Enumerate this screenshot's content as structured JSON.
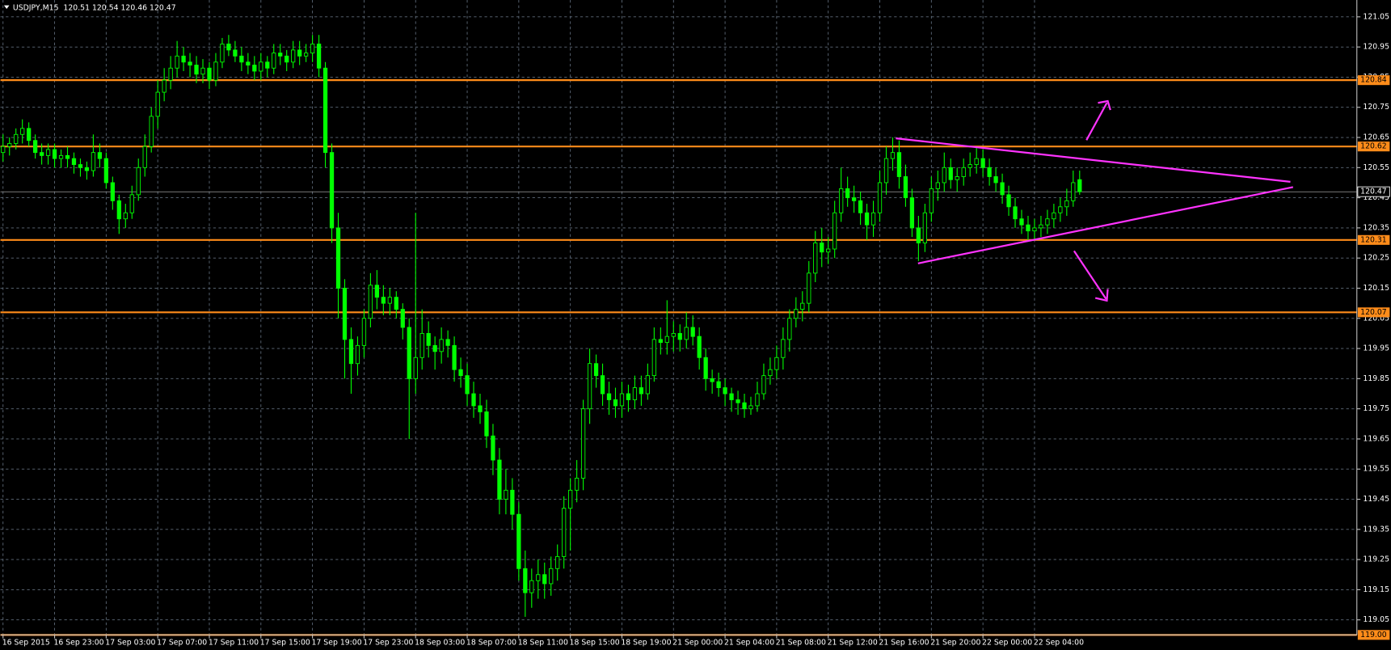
{
  "chart_data": {
    "type": "candlestick",
    "title": "USDJPY,M15  120.51 120.54 120.46 120.47",
    "color": "#00ff00",
    "open": [
      120.6,
      120.62,
      120.63,
      120.66,
      120.68,
      120.64,
      120.6,
      120.59,
      120.61,
      120.58,
      120.59,
      120.58,
      120.56,
      120.55,
      120.54,
      120.6,
      120.58,
      120.5,
      120.44,
      120.38,
      120.4,
      120.46,
      120.55,
      120.62,
      120.72,
      120.8,
      120.84,
      120.88,
      120.92,
      120.9,
      120.89,
      120.86,
      120.88,
      120.84,
      120.9,
      120.96,
      120.94,
      120.92,
      120.9,
      120.89,
      120.87,
      120.9,
      120.88,
      120.93,
      120.92,
      120.9,
      120.94,
      120.92,
      120.93,
      120.96,
      120.88,
      120.6,
      120.35,
      120.15,
      119.98,
      119.9,
      119.96,
      120.05,
      120.16,
      120.12,
      120.1,
      120.12,
      120.08,
      120.02,
      119.85,
      119.92,
      120.0,
      119.96,
      119.94,
      119.98,
      119.96,
      119.88,
      119.86,
      119.8,
      119.76,
      119.74,
      119.66,
      119.58,
      119.45,
      119.48,
      119.4,
      119.22,
      119.14,
      119.18,
      119.2,
      119.17,
      119.22,
      119.26,
      119.42,
      119.48,
      119.52,
      119.75,
      119.9,
      119.86,
      119.8,
      119.78,
      119.76,
      119.8,
      119.78,
      119.82,
      119.8,
      119.86,
      119.98,
      119.97,
      119.99,
      120.0,
      119.98,
      120.02,
      119.99,
      119.92,
      119.85,
      119.84,
      119.82,
      119.8,
      119.78,
      119.77,
      119.75,
      119.76,
      119.8,
      119.86,
      119.88,
      119.92,
      119.98,
      120.05,
      120.08,
      120.1,
      120.2,
      120.3,
      120.27,
      120.28,
      120.4,
      120.48,
      120.45,
      120.44,
      120.4,
      120.36,
      120.4,
      120.5,
      120.58,
      120.6,
      120.52,
      120.45,
      120.35,
      120.3,
      120.4,
      120.48,
      120.5,
      120.55,
      120.51,
      120.52,
      120.55,
      120.56,
      120.58,
      120.55,
      120.52,
      120.5,
      120.46,
      120.42,
      120.38,
      120.36,
      120.34,
      120.35,
      120.36,
      120.38,
      120.4,
      120.42,
      120.44,
      120.51
    ],
    "high": [
      120.66,
      120.65,
      120.68,
      120.71,
      120.7,
      120.66,
      120.63,
      120.63,
      120.63,
      120.61,
      120.62,
      120.6,
      120.58,
      120.57,
      120.66,
      120.63,
      120.6,
      120.52,
      120.46,
      120.43,
      120.49,
      120.58,
      120.66,
      120.75,
      120.84,
      120.88,
      120.92,
      120.97,
      120.95,
      120.93,
      120.92,
      120.91,
      120.9,
      120.93,
      120.98,
      120.99,
      120.97,
      120.95,
      120.93,
      120.92,
      120.93,
      120.92,
      120.96,
      120.96,
      120.94,
      120.97,
      120.97,
      120.96,
      120.99,
      120.99,
      120.9,
      120.63,
      120.4,
      120.18,
      120.02,
      119.99,
      120.08,
      120.2,
      120.21,
      120.16,
      120.15,
      120.14,
      120.1,
      120.05,
      120.4,
      120.08,
      120.04,
      119.99,
      120.02,
      120.01,
      119.99,
      119.92,
      119.9,
      119.84,
      119.8,
      119.78,
      119.7,
      119.62,
      119.55,
      119.52,
      119.44,
      119.28,
      119.22,
      119.25,
      119.24,
      119.26,
      119.3,
      119.46,
      119.52,
      119.58,
      119.78,
      119.95,
      119.93,
      119.9,
      119.84,
      119.82,
      119.84,
      119.83,
      119.86,
      119.86,
      119.9,
      120.02,
      120.02,
      120.11,
      120.04,
      120.03,
      120.07,
      120.06,
      120.02,
      119.95,
      119.88,
      119.87,
      119.85,
      119.82,
      119.81,
      119.8,
      119.79,
      119.84,
      119.9,
      119.92,
      119.96,
      120.02,
      120.08,
      120.12,
      120.14,
      120.24,
      120.34,
      120.35,
      120.32,
      120.44,
      120.55,
      120.52,
      120.49,
      120.47,
      120.43,
      120.44,
      120.54,
      120.62,
      120.65,
      120.64,
      120.56,
      120.48,
      120.39,
      120.43,
      120.52,
      120.54,
      120.6,
      120.58,
      120.55,
      120.58,
      120.6,
      120.62,
      120.61,
      120.58,
      120.55,
      120.53,
      120.49,
      120.45,
      120.41,
      120.39,
      120.38,
      120.39,
      120.41,
      120.43,
      120.45,
      120.48,
      120.54,
      120.54
    ],
    "low": [
      120.57,
      120.59,
      120.61,
      120.63,
      120.62,
      120.58,
      120.56,
      120.56,
      120.55,
      120.55,
      120.55,
      120.53,
      120.52,
      120.51,
      120.52,
      120.55,
      120.48,
      120.41,
      120.33,
      120.35,
      120.38,
      120.44,
      120.52,
      120.6,
      120.68,
      120.77,
      120.81,
      120.85,
      120.87,
      120.85,
      120.83,
      120.83,
      120.81,
      120.82,
      120.88,
      120.92,
      120.9,
      120.87,
      120.86,
      120.84,
      120.84,
      120.85,
      120.86,
      120.89,
      120.87,
      120.88,
      120.89,
      120.9,
      120.9,
      120.85,
      120.55,
      120.3,
      120.05,
      119.85,
      119.8,
      119.86,
      119.92,
      120.02,
      120.08,
      120.06,
      120.06,
      120.05,
      119.98,
      119.65,
      119.8,
      119.88,
      119.92,
      119.88,
      119.9,
      119.92,
      119.84,
      119.82,
      119.76,
      119.72,
      119.7,
      119.62,
      119.53,
      119.4,
      119.4,
      119.35,
      119.18,
      119.06,
      119.09,
      119.12,
      119.12,
      119.13,
      119.18,
      119.22,
      119.28,
      119.44,
      119.48,
      119.7,
      119.82,
      119.76,
      119.73,
      119.72,
      119.72,
      119.74,
      119.75,
      119.76,
      119.78,
      119.84,
      119.93,
      119.93,
      119.94,
      119.94,
      119.95,
      119.96,
      119.88,
      119.81,
      119.8,
      119.79,
      119.76,
      119.74,
      119.73,
      119.72,
      119.73,
      119.74,
      119.78,
      119.83,
      119.85,
      119.88,
      119.94,
      120.02,
      120.04,
      120.07,
      120.17,
      120.22,
      120.23,
      120.25,
      120.37,
      120.42,
      120.4,
      120.36,
      120.31,
      120.32,
      120.37,
      120.46,
      120.54,
      120.48,
      120.42,
      120.32,
      120.24,
      120.27,
      120.37,
      120.44,
      120.47,
      120.48,
      120.47,
      120.49,
      120.52,
      120.53,
      120.52,
      120.49,
      120.47,
      120.43,
      120.39,
      120.35,
      120.33,
      120.31,
      120.31,
      120.32,
      120.33,
      120.35,
      120.37,
      120.39,
      120.42,
      120.46
    ],
    "close": [
      120.62,
      120.63,
      120.66,
      120.68,
      120.64,
      120.6,
      120.59,
      120.61,
      120.58,
      120.59,
      120.58,
      120.56,
      120.55,
      120.54,
      120.6,
      120.58,
      120.5,
      120.44,
      120.38,
      120.4,
      120.46,
      120.55,
      120.62,
      120.72,
      120.8,
      120.84,
      120.88,
      120.92,
      120.9,
      120.89,
      120.86,
      120.88,
      120.84,
      120.9,
      120.96,
      120.94,
      120.92,
      120.9,
      120.89,
      120.87,
      120.9,
      120.88,
      120.93,
      120.92,
      120.9,
      120.94,
      120.92,
      120.93,
      120.96,
      120.88,
      120.6,
      120.35,
      120.15,
      119.98,
      119.9,
      119.96,
      120.05,
      120.16,
      120.12,
      120.1,
      120.12,
      120.08,
      120.02,
      119.85,
      119.92,
      120.0,
      119.96,
      119.94,
      119.98,
      119.96,
      119.88,
      119.86,
      119.8,
      119.76,
      119.74,
      119.66,
      119.58,
      119.45,
      119.48,
      119.4,
      119.22,
      119.14,
      119.18,
      119.2,
      119.17,
      119.22,
      119.26,
      119.42,
      119.48,
      119.52,
      119.75,
      119.9,
      119.86,
      119.8,
      119.78,
      119.76,
      119.8,
      119.78,
      119.82,
      119.8,
      119.86,
      119.98,
      119.97,
      119.99,
      120.0,
      119.98,
      120.02,
      119.99,
      119.92,
      119.85,
      119.84,
      119.82,
      119.8,
      119.78,
      119.77,
      119.75,
      119.76,
      119.8,
      119.86,
      119.88,
      119.92,
      119.98,
      120.05,
      120.08,
      120.1,
      120.2,
      120.3,
      120.27,
      120.28,
      120.4,
      120.48,
      120.45,
      120.44,
      120.4,
      120.36,
      120.4,
      120.5,
      120.58,
      120.6,
      120.52,
      120.45,
      120.35,
      120.3,
      120.4,
      120.48,
      120.5,
      120.55,
      120.51,
      120.52,
      120.55,
      120.56,
      120.58,
      120.55,
      120.52,
      120.5,
      120.46,
      120.42,
      120.38,
      120.36,
      120.34,
      120.35,
      120.36,
      120.38,
      120.4,
      120.42,
      120.44,
      120.5,
      120.47
    ],
    "xlim": [
      -0.4,
      210
    ],
    "xticks": [
      {
        "value": 0,
        "label": "16 Sep 2015"
      },
      {
        "value": 8,
        "label": "16 Sep 23:00"
      },
      {
        "value": 16,
        "label": "17 Sep 03:00"
      },
      {
        "value": 24,
        "label": "17 Sep 07:00"
      },
      {
        "value": 32,
        "label": "17 Sep 11:00"
      },
      {
        "value": 40,
        "label": "17 Sep 15:00"
      },
      {
        "value": 48,
        "label": "17 Sep 19:00"
      },
      {
        "value": 56,
        "label": "17 Sep 23:00"
      },
      {
        "value": 64,
        "label": "18 Sep 03:00"
      },
      {
        "value": 72,
        "label": "18 Sep 07:00"
      },
      {
        "value": 80,
        "label": "18 Sep 11:00"
      },
      {
        "value": 88,
        "label": "18 Sep 15:00"
      },
      {
        "value": 96,
        "label": "18 Sep 19:00"
      },
      {
        "value": 104,
        "label": "21 Sep 00:00"
      },
      {
        "value": 112,
        "label": "21 Sep 04:00"
      },
      {
        "value": 120,
        "label": "21 Sep 08:00"
      },
      {
        "value": 128,
        "label": "21 Sep 12:00"
      },
      {
        "value": 136,
        "label": "21 Sep 16:00"
      },
      {
        "value": 144,
        "label": "21 Sep 20:00"
      },
      {
        "value": 152,
        "label": "22 Sep 00:00"
      },
      {
        "value": 160,
        "label": "22 Sep 04:00"
      }
    ],
    "ylim": [
      119,
      121.1
    ],
    "yticks": [
      119.05,
      119.15,
      119.25,
      119.35,
      119.45,
      119.55,
      119.65,
      119.75,
      119.85,
      119.95,
      120.05,
      120.15,
      120.25,
      120.35,
      120.45,
      120.55,
      120.65,
      120.75,
      120.85,
      120.95,
      121.05
    ],
    "grid": true,
    "levels": [
      120.84,
      120.62,
      120.31,
      120.07,
      {
        "value": 119,
        "label": "119.00"
      }
    ],
    "level_color": "#ff8c1a",
    "current_price": 120.47
  }
}
